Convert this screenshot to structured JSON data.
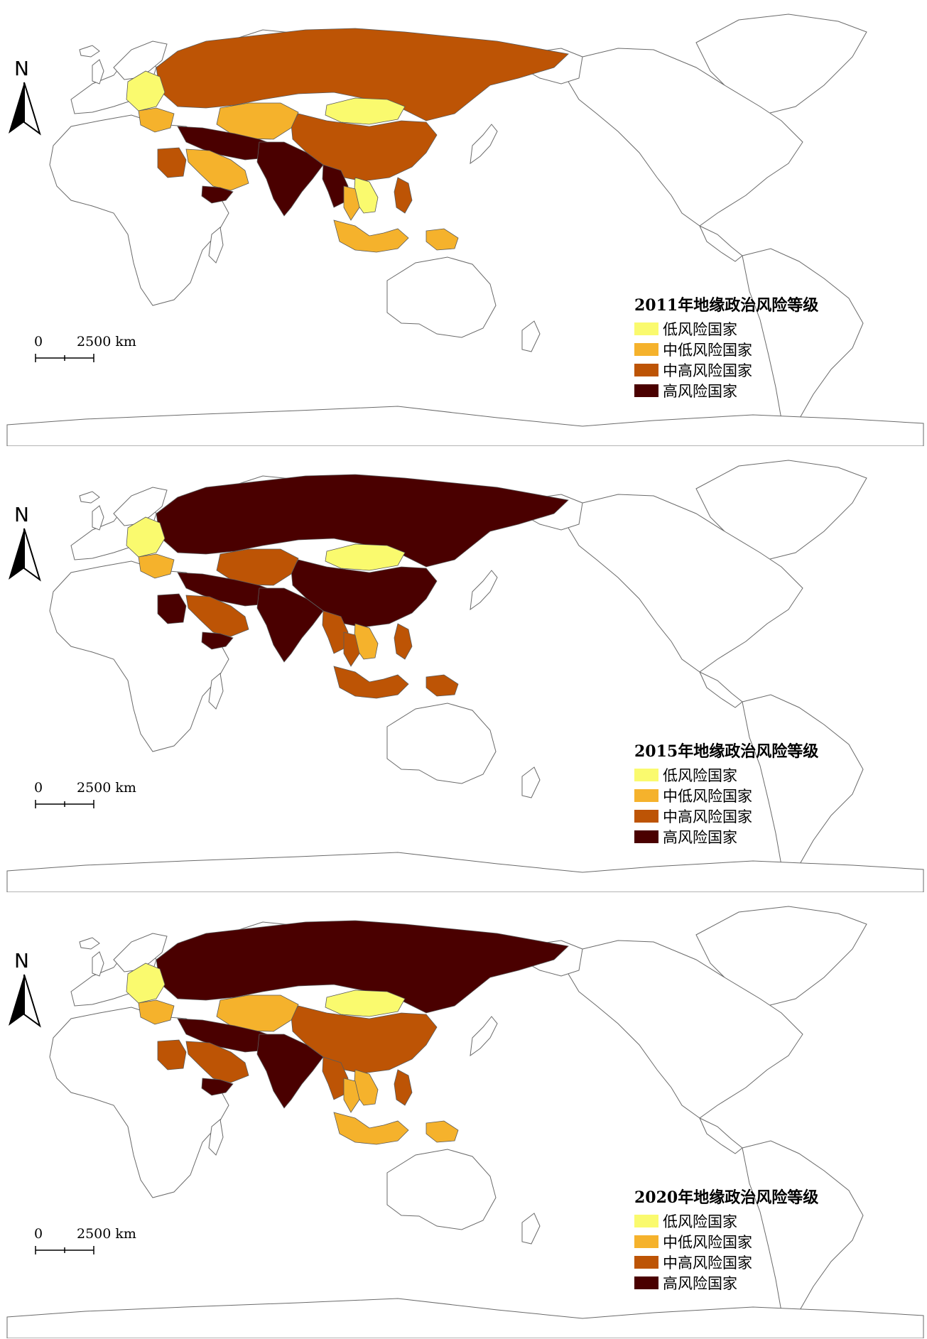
{
  "panels": [
    {
      "legend_title": "2011年地缘政治风险等级",
      "regions": {
        "russia": "medium_high",
        "mongolia": "low",
        "china": "medium_high",
        "central_asia": "medium_low",
        "eastern_europe": "low",
        "balkans": "medium_low",
        "middle_east": "high",
        "arabia": "medium_low",
        "yemen": "high",
        "egypt": "medium_high",
        "south_asia": "high",
        "myanmar": "high",
        "indochina": "low",
        "thailand": "medium_low",
        "philippines": "medium_high",
        "maritime_se_asia": "medium_low",
        "png": "medium_low"
      }
    },
    {
      "legend_title": "2015年地缘政治风险等级",
      "regions": {
        "russia": "high",
        "mongolia": "low",
        "china": "high",
        "central_asia": "medium_high",
        "eastern_europe": "low",
        "balkans": "medium_low",
        "middle_east": "high",
        "arabia": "medium_high",
        "yemen": "high",
        "egypt": "high",
        "south_asia": "high",
        "myanmar": "medium_high",
        "indochina": "medium_low",
        "thailand": "medium_high",
        "philippines": "medium_high",
        "maritime_se_asia": "medium_high",
        "png": "medium_high"
      }
    },
    {
      "legend_title": "2020年地缘政治风险等级",
      "regions": {
        "russia": "high",
        "mongolia": "low",
        "china": "medium_high",
        "central_asia": "medium_low",
        "eastern_europe": "low",
        "balkans": "medium_low",
        "middle_east": "high",
        "arabia": "medium_high",
        "yemen": "high",
        "egypt": "medium_high",
        "south_asia": "high",
        "myanmar": "medium_high",
        "indochina": "medium_low",
        "thailand": "medium_low",
        "philippines": "medium_high",
        "maritime_se_asia": "medium_low",
        "png": "medium_low"
      }
    }
  ],
  "legend_items": [
    {
      "key": "low",
      "label": "低风险国家",
      "color": "#fafa6e"
    },
    {
      "key": "medium_low",
      "label": "中低风险国家",
      "color": "#f5b22c"
    },
    {
      "key": "medium_high",
      "label": "中高风险国家",
      "color": "#bd5405"
    },
    {
      "key": "high",
      "label": "高风险国家",
      "color": "#4a0000"
    }
  ],
  "north_label": "N",
  "scale": {
    "zero": "0",
    "distance": "2500 km"
  }
}
